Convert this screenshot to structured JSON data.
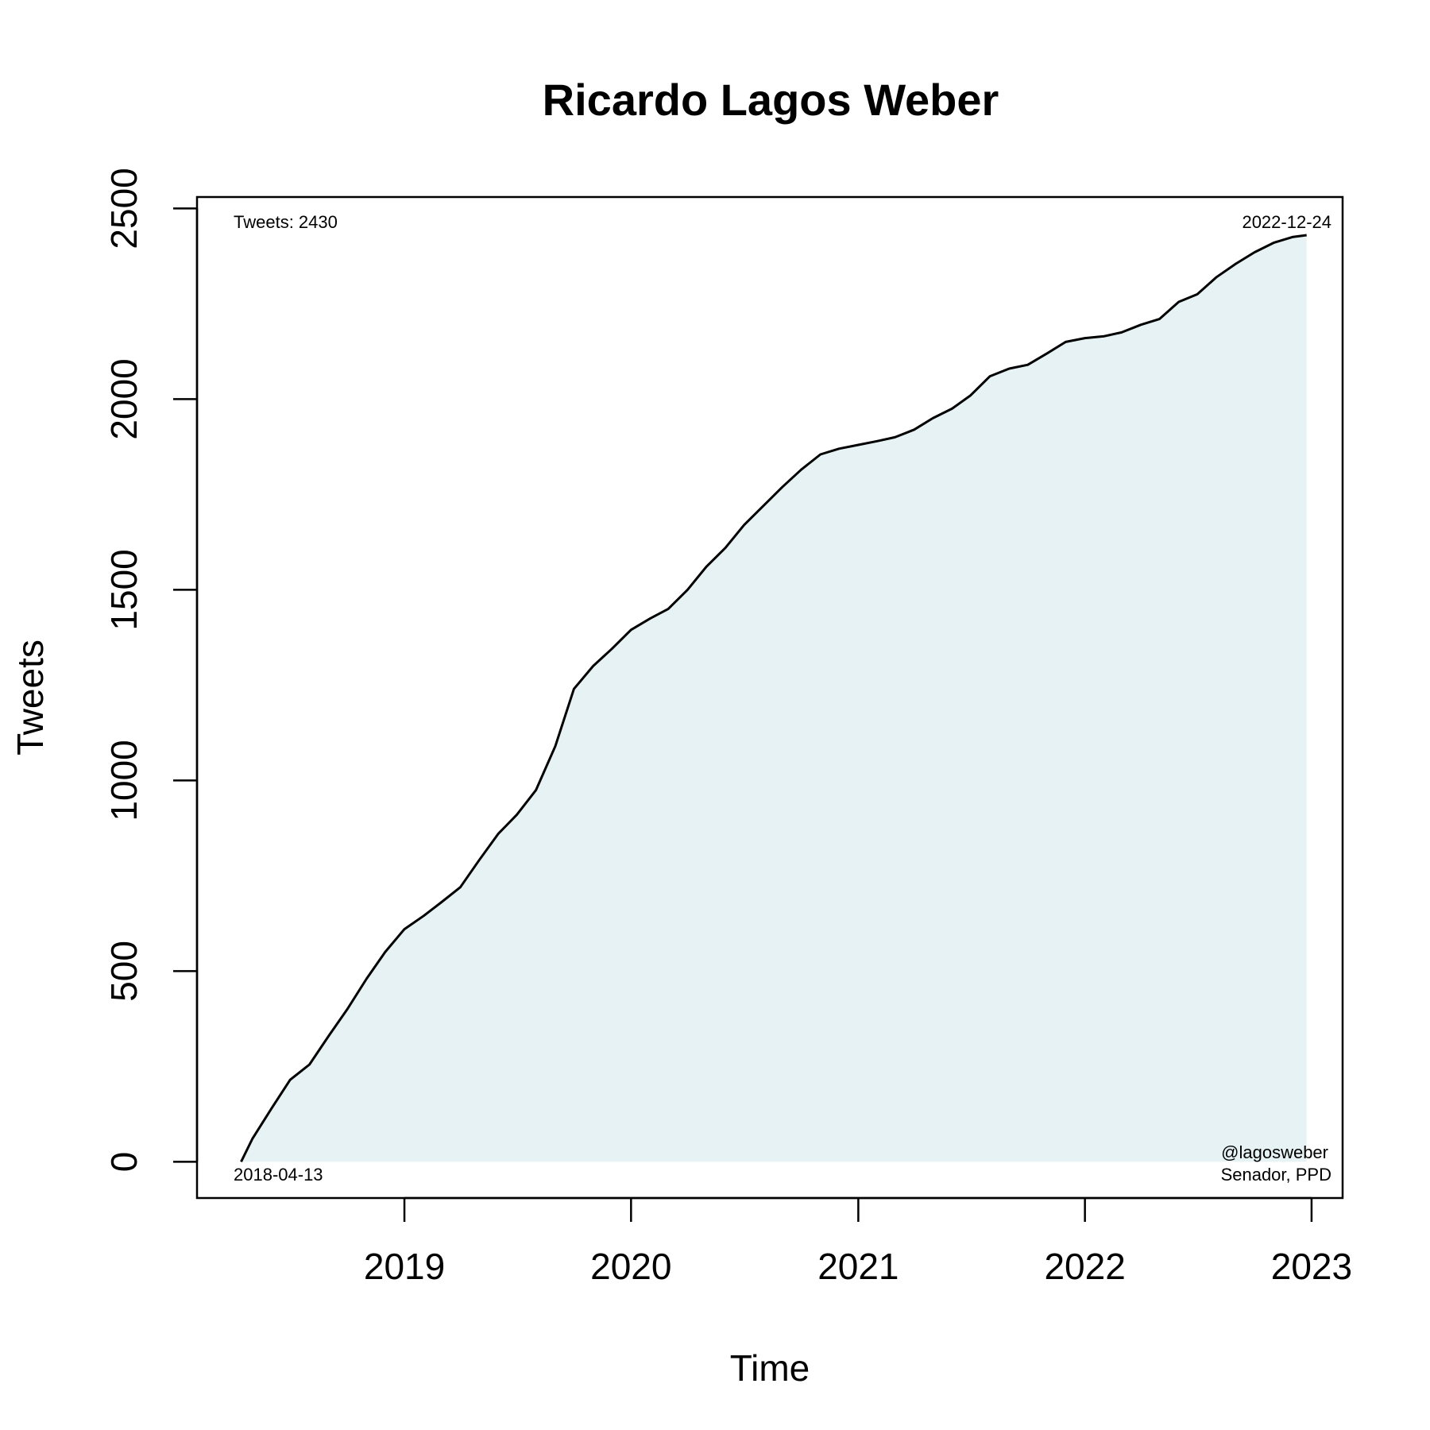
{
  "chart_data": {
    "type": "area",
    "title": "Ricardo Lagos Weber",
    "xlabel": "Time",
    "ylabel": "Tweets",
    "xlim": [
      "2018-02-01",
      "2023-02-20"
    ],
    "ylim": [
      -95,
      2530
    ],
    "x_ticks": [
      {
        "date": "2019-01-01",
        "label": "2019"
      },
      {
        "date": "2020-01-01",
        "label": "2020"
      },
      {
        "date": "2021-01-01",
        "label": "2021"
      },
      {
        "date": "2022-01-01",
        "label": "2022"
      },
      {
        "date": "2023-01-01",
        "label": "2023"
      }
    ],
    "y_ticks": [
      0,
      500,
      1000,
      1500,
      2000,
      2500
    ],
    "grid": false,
    "series": [
      {
        "x": [
          "2018-04-13",
          "2018-05-01",
          "2018-06-01",
          "2018-07-01",
          "2018-08-01",
          "2018-09-01",
          "2018-10-01",
          "2018-11-01",
          "2018-12-01",
          "2019-01-01",
          "2019-02-01",
          "2019-03-01",
          "2019-04-01",
          "2019-05-01",
          "2019-06-01",
          "2019-07-01",
          "2019-08-01",
          "2019-09-01",
          "2019-10-01",
          "2019-11-01",
          "2019-12-01",
          "2020-01-01",
          "2020-02-01",
          "2020-03-01",
          "2020-04-01",
          "2020-05-01",
          "2020-06-01",
          "2020-07-01",
          "2020-08-01",
          "2020-09-01",
          "2020-10-01",
          "2020-11-01",
          "2020-12-01",
          "2021-01-01",
          "2021-02-01",
          "2021-03-01",
          "2021-04-01",
          "2021-05-01",
          "2021-06-01",
          "2021-07-01",
          "2021-08-01",
          "2021-09-01",
          "2021-10-01",
          "2021-11-01",
          "2021-12-01",
          "2022-01-01",
          "2022-02-01",
          "2022-03-01",
          "2022-04-01",
          "2022-05-01",
          "2022-06-01",
          "2022-07-01",
          "2022-08-01",
          "2022-09-01",
          "2022-10-01",
          "2022-11-01",
          "2022-12-01",
          "2022-12-24"
        ],
        "values": [
          0,
          60,
          140,
          215,
          255,
          330,
          400,
          480,
          550,
          610,
          645,
          680,
          720,
          790,
          860,
          910,
          975,
          1090,
          1240,
          1300,
          1345,
          1395,
          1425,
          1450,
          1500,
          1560,
          1610,
          1670,
          1720,
          1770,
          1815,
          1855,
          1870,
          1880,
          1890,
          1900,
          1920,
          1950,
          1975,
          2010,
          2060,
          2080,
          2090,
          2120,
          2150,
          2160,
          2165,
          2175,
          2195,
          2210,
          2255,
          2275,
          2320,
          2355,
          2385,
          2410,
          2425,
          2430
        ]
      }
    ],
    "annotations": {
      "top_left": "Tweets: 2430",
      "top_right": "2022-12-24",
      "bottom_left": "2018-04-13",
      "bottom_right_line1": "@lagosweber",
      "bottom_right_line2": "Senador, PPD"
    },
    "colors": {
      "line": "#000000",
      "fill": "#e6f2f3"
    }
  }
}
